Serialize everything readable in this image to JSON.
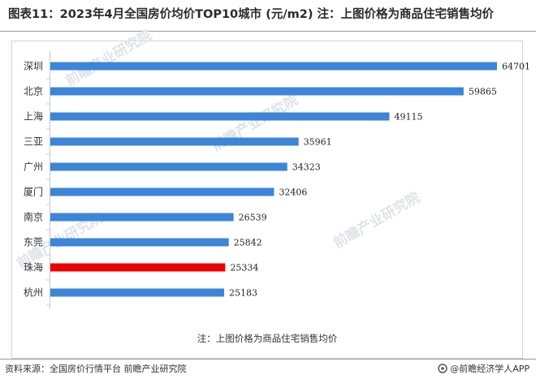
{
  "header": {
    "title": "图表11：2023年4月全国房价均价TOP10城市 (元/m2) 注：上图价格为商品住宅销售均价"
  },
  "chart_data": {
    "type": "bar",
    "orientation": "horizontal",
    "categories": [
      "深圳",
      "北京",
      "上海",
      "三亚",
      "广州",
      "厦门",
      "南京",
      "东莞",
      "珠海",
      "杭州"
    ],
    "values": [
      64701,
      59865,
      49115,
      35961,
      34323,
      32406,
      26539,
      25842,
      25334,
      25183
    ],
    "highlight_category": "珠海",
    "bar_color": "#3d85d8",
    "highlight_color": "#ee0000",
    "xlim": [
      0,
      68000
    ],
    "grid": false,
    "data_labels": true,
    "legend": "none"
  },
  "note": "注：上图价格为商品住宅销售均价",
  "footer": {
    "source": "资料来源：全国房价行情平台 前瞻产业研究院",
    "brand": "@前瞻经济学人APP"
  },
  "watermark": "前瞻产业研究院"
}
